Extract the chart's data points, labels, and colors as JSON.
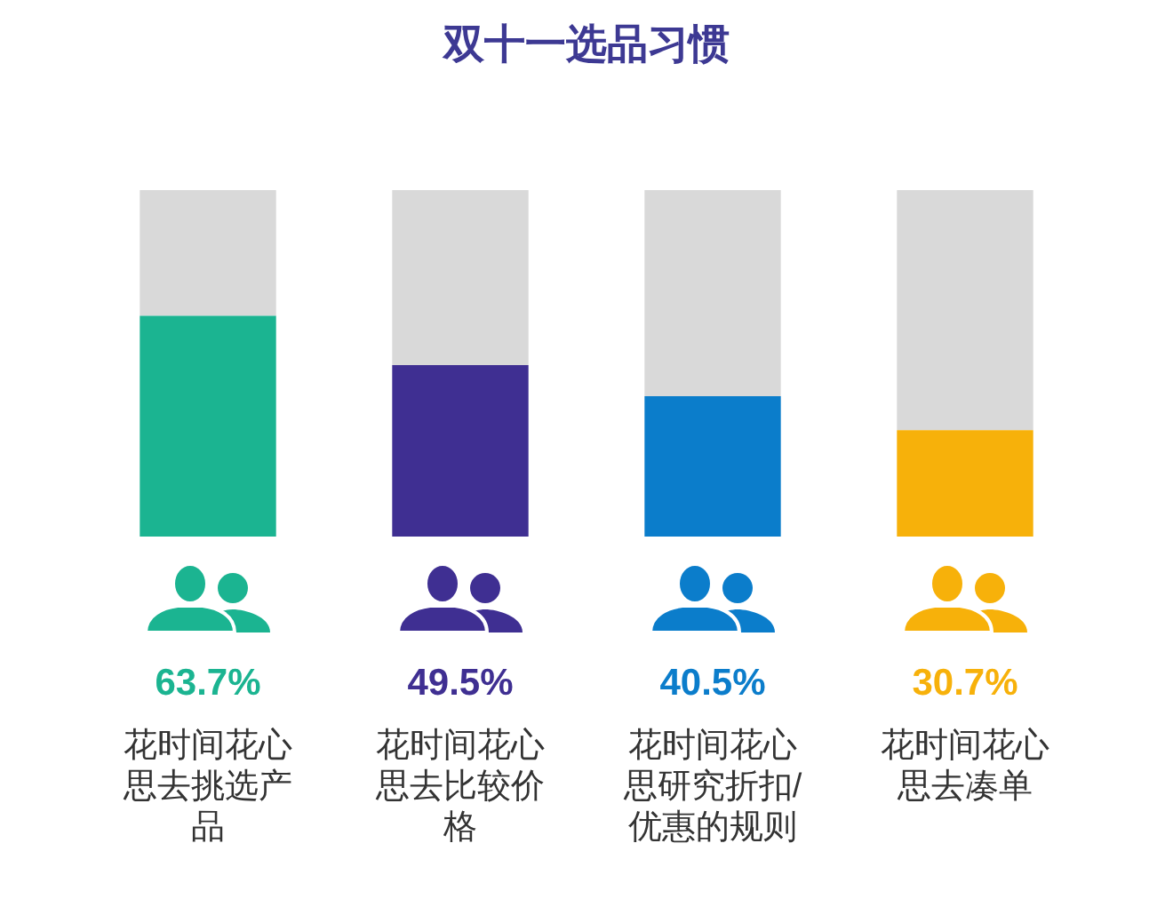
{
  "chart_data": {
    "type": "bar",
    "title": "双十一选品习惯",
    "categories": [
      "花时间花心思去挑选产品",
      "花时间花心思去比较价格",
      "花时间花心思研究折扣/优惠的规则",
      "花时间花心思去凑单"
    ],
    "series": [
      {
        "colors": [
          "#1bb491",
          "#3f2f92",
          "#0b7dcb",
          "#f7b10a"
        ],
        "values": [
          63.7,
          49.5,
          40.5,
          30.7
        ],
        "value_labels": [
          "63.7%",
          "49.5%",
          "40.5%",
          "30.7%"
        ]
      },
      {
        "color": "#d9d9d9",
        "values": [
          36.3,
          50.5,
          59.5,
          69.3
        ]
      }
    ],
    "stacked": true,
    "ylim": [
      0,
      100
    ],
    "tick_labels": "x"
  }
}
